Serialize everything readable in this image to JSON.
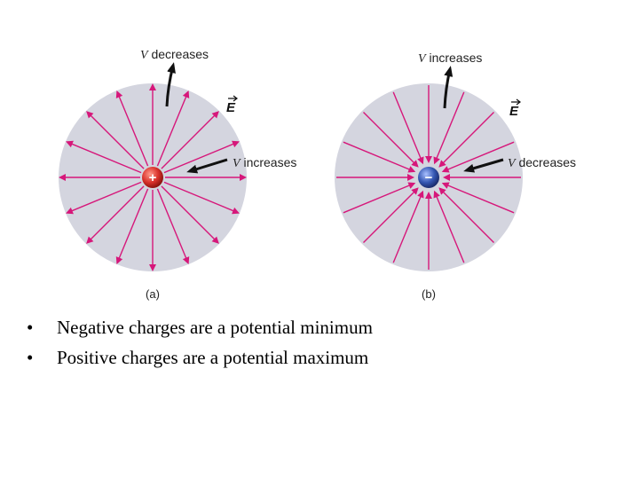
{
  "diagram": {
    "colors": {
      "disk": "#d4d5df",
      "field_line": "#d6177a",
      "positive_charge": "#d9322b",
      "negative_charge": "#3557b3",
      "arrow": "#111111"
    },
    "panel_a": {
      "charge_sign": "+",
      "top_label_var": "V",
      "top_label_rest": " decreases",
      "field_label": "E",
      "side_label_var": "V",
      "side_label_rest": " increases",
      "caption": "(a)",
      "field_direction": "outward"
    },
    "panel_b": {
      "charge_sign": "−",
      "top_label_var": "V",
      "top_label_rest": " increases",
      "field_label": "E",
      "side_label_var": "V",
      "side_label_rest": " decreases",
      "caption": "(b)",
      "field_direction": "inward"
    }
  },
  "bullets": [
    {
      "marker": "•",
      "text": "Negative charges are a potential minimum"
    },
    {
      "marker": "•",
      "text": "Positive charges are a potential maximum"
    }
  ]
}
